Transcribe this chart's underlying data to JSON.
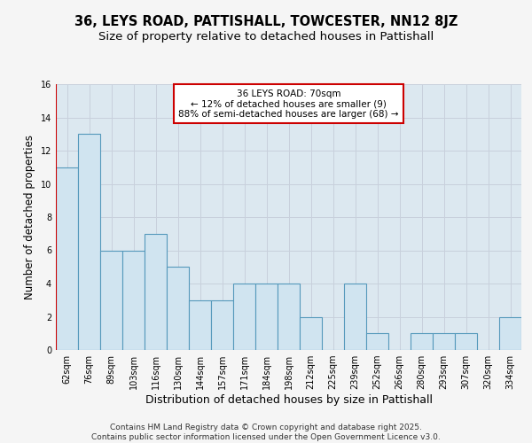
{
  "title": "36, LEYS ROAD, PATTISHALL, TOWCESTER, NN12 8JZ",
  "subtitle": "Size of property relative to detached houses in Pattishall",
  "xlabel": "Distribution of detached houses by size in Pattishall",
  "ylabel": "Number of detached properties",
  "categories": [
    "62sqm",
    "76sqm",
    "89sqm",
    "103sqm",
    "116sqm",
    "130sqm",
    "144sqm",
    "157sqm",
    "171sqm",
    "184sqm",
    "198sqm",
    "212sqm",
    "225sqm",
    "239sqm",
    "252sqm",
    "266sqm",
    "280sqm",
    "293sqm",
    "307sqm",
    "320sqm",
    "334sqm"
  ],
  "values": [
    11,
    13,
    6,
    6,
    7,
    5,
    3,
    3,
    4,
    4,
    4,
    2,
    0,
    4,
    1,
    0,
    1,
    1,
    1,
    0,
    2
  ],
  "bar_color": "#d0e4f0",
  "bar_edge_color": "#5599bb",
  "annotation_text": "36 LEYS ROAD: 70sqm\n← 12% of detached houses are smaller (9)\n88% of semi-detached houses are larger (68) →",
  "annotation_box_color": "#ffffff",
  "annotation_box_edge": "#cc0000",
  "red_line_x": -0.5,
  "ylim": [
    0,
    16
  ],
  "yticks": [
    0,
    2,
    4,
    6,
    8,
    10,
    12,
    14,
    16
  ],
  "grid_color": "#c8d0dc",
  "plot_bg_color": "#dce8f0",
  "fig_bg_color": "#f5f5f5",
  "footer_text": "Contains HM Land Registry data © Crown copyright and database right 2025.\nContains public sector information licensed under the Open Government Licence v3.0.",
  "title_fontsize": 10.5,
  "subtitle_fontsize": 9.5,
  "xlabel_fontsize": 9,
  "ylabel_fontsize": 8.5,
  "tick_fontsize": 7,
  "annotation_fontsize": 7.5,
  "footer_fontsize": 6.5
}
